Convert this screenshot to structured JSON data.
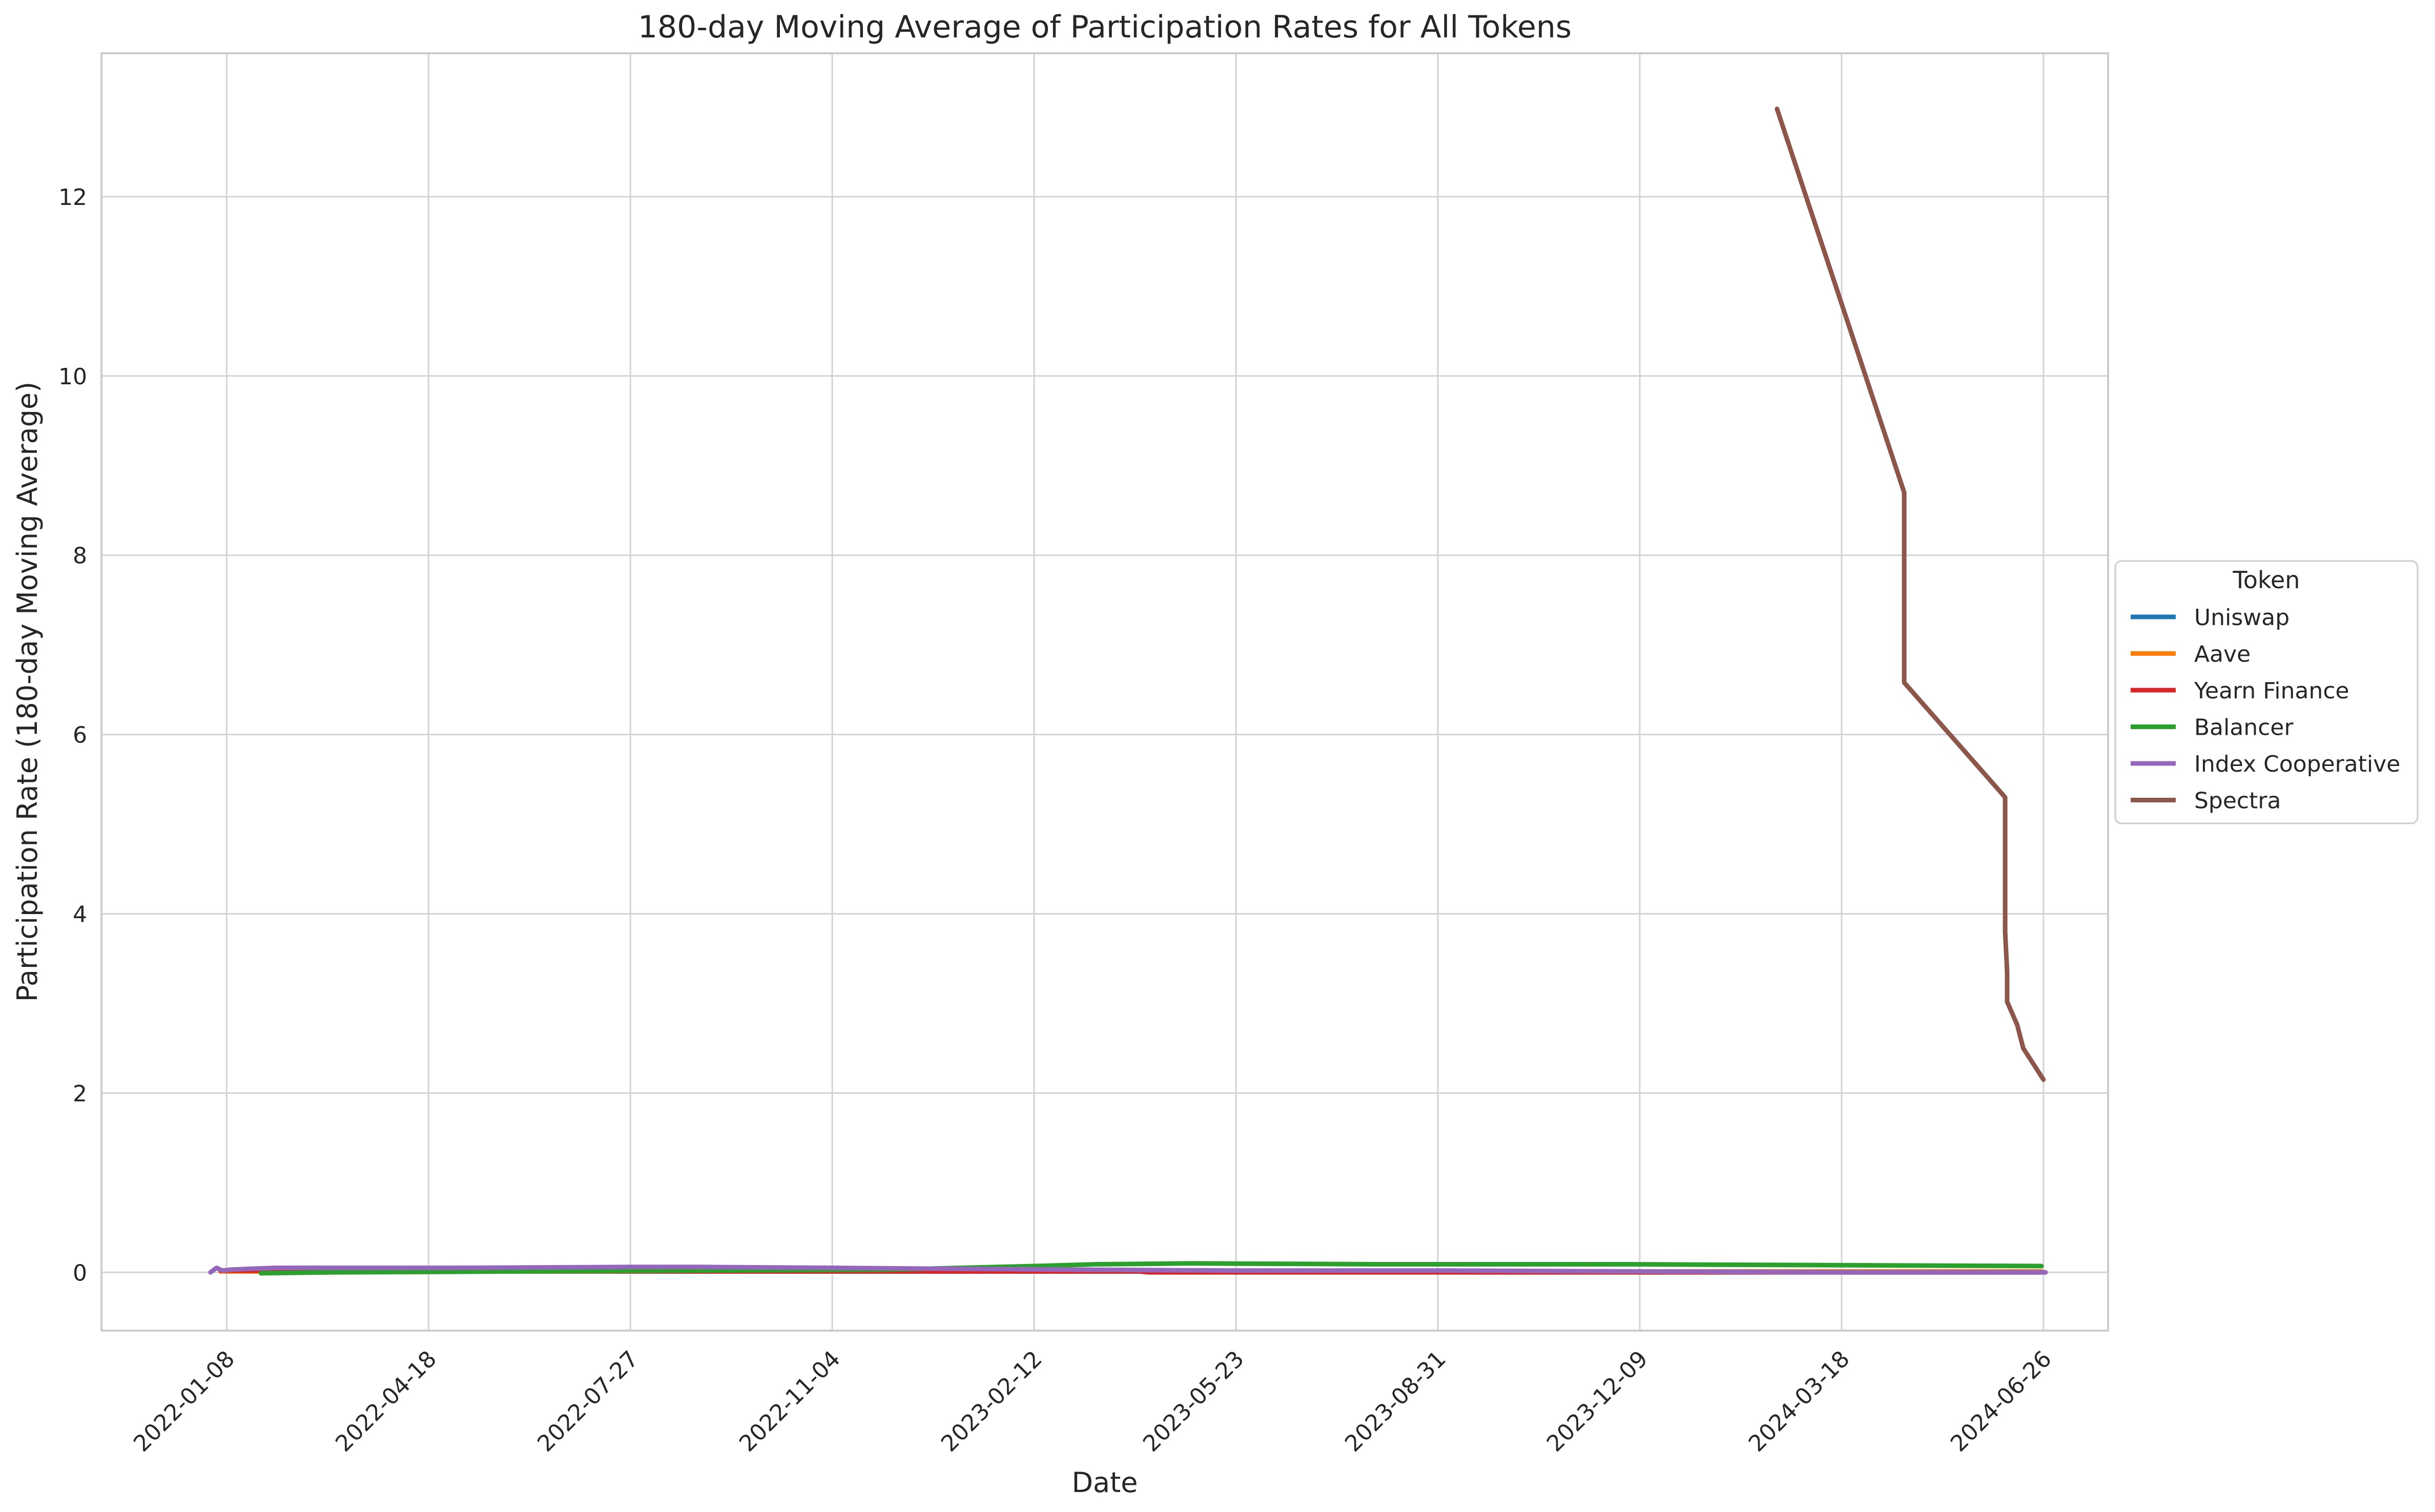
{
  "chart_data": {
    "type": "line",
    "title": "180-day Moving Average of Participation Rates for All Tokens",
    "xlabel": "Date",
    "ylabel": "Participation Rate (180-day Moving Average)",
    "x_ticks": [
      "2022-01-08",
      "2022-04-18",
      "2022-07-27",
      "2022-11-04",
      "2023-02-12",
      "2023-05-23",
      "2023-08-31",
      "2023-12-09",
      "2024-03-18",
      "2024-06-26"
    ],
    "y_ticks": [
      0,
      2,
      4,
      6,
      8,
      10,
      12
    ],
    "xlim": [
      "2021-11-07",
      "2024-07-28"
    ],
    "ylim": [
      -0.65,
      13.6
    ],
    "grid": true,
    "legend": {
      "title": "Token",
      "placement": "outside-right"
    },
    "series": [
      {
        "name": "Uniswap",
        "color": "#1f77b4",
        "points": [
          [
            "2022-01-05",
            0.02
          ],
          [
            "2022-06-01",
            0.02
          ],
          [
            "2023-01-01",
            0.02
          ],
          [
            "2023-06-01",
            0.01
          ],
          [
            "2024-01-01",
            0.01
          ],
          [
            "2024-06-25",
            0.01
          ]
        ]
      },
      {
        "name": "Aave",
        "color": "#ff7f0e",
        "points": [
          [
            "2022-01-05",
            0.01
          ],
          [
            "2022-06-01",
            0.01
          ],
          [
            "2023-01-01",
            0.01
          ],
          [
            "2023-06-01",
            0.01
          ],
          [
            "2024-01-01",
            0.01
          ],
          [
            "2024-06-25",
            0.01
          ]
        ]
      },
      {
        "name": "Yearn Finance",
        "color": "#d62728",
        "points": [
          [
            "2022-01-05",
            0.02
          ],
          [
            "2022-06-01",
            0.01
          ],
          [
            "2022-12-01",
            0.01
          ],
          [
            "2023-04-05",
            0.01
          ],
          [
            "2023-04-10",
            0.0
          ],
          [
            "2024-01-01",
            0.0
          ],
          [
            "2024-06-25",
            0.0
          ]
        ]
      },
      {
        "name": "Balancer",
        "color": "#2ca02c",
        "points": [
          [
            "2022-01-25",
            -0.01
          ],
          [
            "2022-03-01",
            0.0
          ],
          [
            "2022-06-01",
            0.01
          ],
          [
            "2022-09-01",
            0.02
          ],
          [
            "2022-12-01",
            0.03
          ],
          [
            "2023-02-12",
            0.07
          ],
          [
            "2023-03-15",
            0.09
          ],
          [
            "2023-05-01",
            0.1
          ],
          [
            "2023-08-01",
            0.09
          ],
          [
            "2023-12-01",
            0.09
          ],
          [
            "2024-03-18",
            0.08
          ],
          [
            "2024-06-25",
            0.07
          ]
        ]
      },
      {
        "name": "Index Cooperative",
        "color": "#9467bd",
        "points": [
          [
            "2021-12-31",
            0.0
          ],
          [
            "2022-01-03",
            0.05
          ],
          [
            "2022-01-06",
            0.02
          ],
          [
            "2022-01-10",
            0.03
          ],
          [
            "2022-01-20",
            0.04
          ],
          [
            "2022-02-01",
            0.05
          ],
          [
            "2022-03-01",
            0.05
          ],
          [
            "2022-05-01",
            0.05
          ],
          [
            "2022-07-27",
            0.06
          ],
          [
            "2022-09-01",
            0.06
          ],
          [
            "2022-11-04",
            0.05
          ],
          [
            "2023-01-01",
            0.04
          ],
          [
            "2023-03-01",
            0.03
          ],
          [
            "2023-05-23",
            0.02
          ],
          [
            "2023-09-01",
            0.02
          ],
          [
            "2023-12-09",
            0.01
          ],
          [
            "2024-03-18",
            0.0
          ],
          [
            "2024-06-27",
            0.0
          ]
        ]
      },
      {
        "name": "Spectra",
        "color": "#8c564b",
        "points": [
          [
            "2024-02-15",
            12.98
          ],
          [
            "2024-04-18",
            8.7
          ],
          [
            "2024-04-18",
            6.58
          ],
          [
            "2024-06-07",
            5.3
          ],
          [
            "2024-06-07",
            3.8
          ],
          [
            "2024-06-08",
            3.35
          ],
          [
            "2024-06-08",
            3.02
          ],
          [
            "2024-06-13",
            2.76
          ],
          [
            "2024-06-16",
            2.5
          ],
          [
            "2024-06-26",
            2.15
          ]
        ]
      }
    ]
  }
}
